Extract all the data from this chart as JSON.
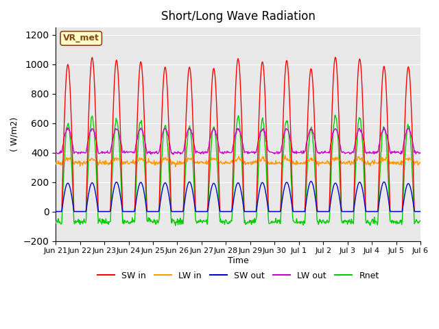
{
  "title": "Short/Long Wave Radiation",
  "xlabel": "Time",
  "ylabel": "( W/m2)",
  "ylim": [
    -200,
    1250
  ],
  "yticks": [
    -200,
    0,
    200,
    400,
    600,
    800,
    1000,
    1200
  ],
  "xtick_labels": [
    "Jun 21",
    "Jun 22",
    "Jun 23",
    "Jun 24",
    "Jun 25",
    "Jun 26",
    "Jun 27",
    "Jun 28",
    "Jun 29",
    "Jun 30",
    "Jul 1",
    "Jul 2",
    "Jul 3",
    "Jul 4",
    "Jul 5",
    "Jul 6"
  ],
  "annotation_label": "VR_met",
  "colors": {
    "SW_in": "#ff0000",
    "LW_in": "#ff9900",
    "SW_out": "#0000cc",
    "LW_out": "#cc00cc",
    "Rnet": "#00cc00"
  },
  "legend_labels": [
    "SW in",
    "LW in",
    "SW out",
    "LW out",
    "Rnet"
  ],
  "background_color": "#e8e8e8",
  "n_days": 15,
  "pts_per_day": 48
}
